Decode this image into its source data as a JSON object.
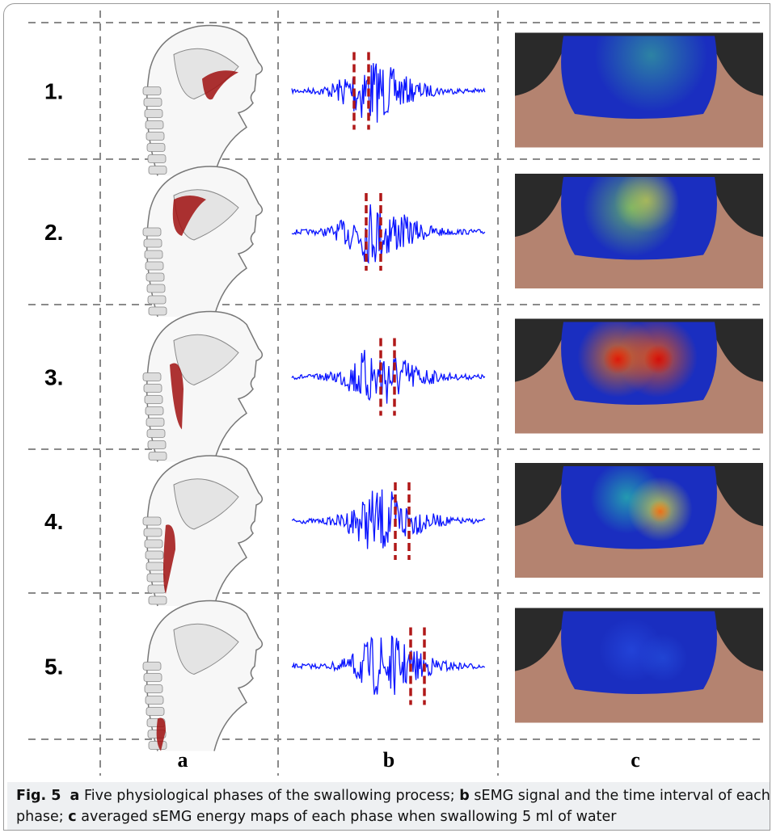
{
  "figure": {
    "rows": [
      {
        "label": "1."
      },
      {
        "label": "2."
      },
      {
        "label": "3."
      },
      {
        "label": "4."
      },
      {
        "label": "5."
      }
    ],
    "columns": [
      {
        "label": "a"
      },
      {
        "label": "b"
      },
      {
        "label": "c"
      }
    ],
    "caption": {
      "label": "Fig. 5",
      "parts": [
        {
          "key": "a",
          "text": "Five physiological phases of the swallowing process;"
        },
        {
          "key": "b",
          "text": "sEMG signal and the time interval of each phase;"
        },
        {
          "key": "c",
          "text": "averaged sEMG energy maps of each phase when swallowing 5 ml of water"
        }
      ]
    }
  }
}
